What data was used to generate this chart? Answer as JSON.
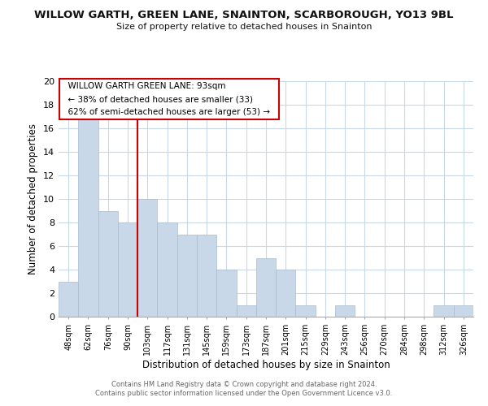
{
  "title": "WILLOW GARTH, GREEN LANE, SNAINTON, SCARBOROUGH, YO13 9BL",
  "subtitle": "Size of property relative to detached houses in Snainton",
  "xlabel": "Distribution of detached houses by size in Snainton",
  "ylabel": "Number of detached properties",
  "bar_color": "#c8d8e8",
  "bar_edge_color": "#aabccc",
  "categories": [
    "48sqm",
    "62sqm",
    "76sqm",
    "90sqm",
    "103sqm",
    "117sqm",
    "131sqm",
    "145sqm",
    "159sqm",
    "173sqm",
    "187sqm",
    "201sqm",
    "215sqm",
    "229sqm",
    "243sqm",
    "256sqm",
    "270sqm",
    "284sqm",
    "298sqm",
    "312sqm",
    "326sqm"
  ],
  "values": [
    3,
    17,
    9,
    8,
    10,
    8,
    7,
    7,
    4,
    1,
    5,
    4,
    1,
    0,
    1,
    0,
    0,
    0,
    0,
    1,
    1
  ],
  "ylim": [
    0,
    20
  ],
  "yticks": [
    0,
    2,
    4,
    6,
    8,
    10,
    12,
    14,
    16,
    18,
    20
  ],
  "vline_x_idx": 3.5,
  "vline_color": "#cc0000",
  "annotation_title": "WILLOW GARTH GREEN LANE: 93sqm",
  "annotation_line1": "← 38% of detached houses are smaller (33)",
  "annotation_line2": "62% of semi-detached houses are larger (53) →",
  "footer1": "Contains HM Land Registry data © Crown copyright and database right 2024.",
  "footer2": "Contains public sector information licensed under the Open Government Licence v3.0.",
  "background_color": "#ffffff",
  "grid_color": "#c8d8e8"
}
